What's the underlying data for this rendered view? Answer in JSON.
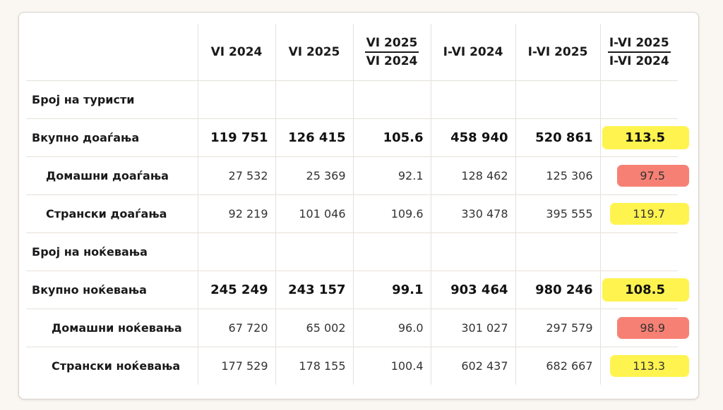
{
  "table": {
    "headers": {
      "h1": "VI 2024",
      "h2": "VI 2025",
      "h3": {
        "numerator": "VI 2025",
        "denominator": "VI 2024"
      },
      "h4": "I-VI 2024",
      "h5": "I-VI 2025",
      "h6": {
        "numerator": "I-VI 2025",
        "denominator": "I-VI 2024"
      }
    },
    "rows": [
      {
        "label": "Број на туристи",
        "level": 0,
        "bold": true,
        "values": [
          "",
          "",
          "",
          "",
          "",
          ""
        ],
        "highlight": ""
      },
      {
        "label": "Вкупно доаѓања",
        "level": 0,
        "bold": true,
        "values": [
          "119 751",
          "126 415",
          "105.6",
          "458 940",
          "520 861",
          "113.5"
        ],
        "highlight": "yellow"
      },
      {
        "label": "Домашни доаѓања",
        "level": 1,
        "bold": false,
        "values": [
          "27 532",
          "25 369",
          "92.1",
          "128 462",
          "125 306",
          "97.5"
        ],
        "highlight": "red"
      },
      {
        "label": "Странски доаѓања",
        "level": 1,
        "bold": false,
        "values": [
          "92 219",
          "101 046",
          "109.6",
          "330 478",
          "395 555",
          "119.7"
        ],
        "highlight": "yellow"
      },
      {
        "label": "Број на ноќевања",
        "level": 0,
        "bold": true,
        "values": [
          "",
          "",
          "",
          "",
          "",
          ""
        ],
        "highlight": ""
      },
      {
        "label": "Вкупно ноќевања",
        "level": 0,
        "bold": true,
        "values": [
          "245 249",
          "243 157",
          "99.1",
          "903 464",
          "980 246",
          "108.5"
        ],
        "highlight": "yellow"
      },
      {
        "label": "Домашни ноќевања",
        "level": 2,
        "bold": false,
        "values": [
          "67 720",
          "65 002",
          "96.0",
          "301 027",
          "297 579",
          "98.9"
        ],
        "highlight": "red"
      },
      {
        "label": "Странски ноќевања",
        "level": 2,
        "bold": false,
        "values": [
          "177 529",
          "178 155",
          "100.4",
          "602 437",
          "682 667",
          "113.3"
        ],
        "highlight": "yellow"
      }
    ]
  },
  "colors": {
    "highlight_yellow": "#fff028",
    "highlight_red": "#f56455"
  }
}
